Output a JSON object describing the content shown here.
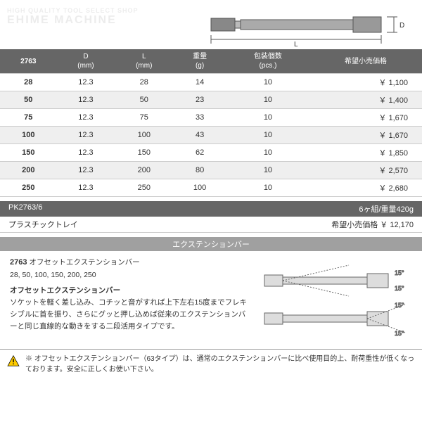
{
  "watermark": {
    "line1": "HIGH QUALITY TOOL SELECT SHOP",
    "line2": "EHIME MACHINE"
  },
  "diagram": {
    "d_label": "D",
    "l_label": "L"
  },
  "spec_table": {
    "headers": [
      "2763",
      "D\n(mm)",
      "L\n(mm)",
      "重量\n(g)",
      "包装個数\n(pcs.)",
      "希望小売価格"
    ],
    "rows": [
      {
        "code": "28",
        "d": "12.3",
        "l": "28",
        "w": "14",
        "pcs": "10",
        "price": "￥ 1,100"
      },
      {
        "code": "50",
        "d": "12.3",
        "l": "50",
        "w": "23",
        "pcs": "10",
        "price": "￥ 1,400"
      },
      {
        "code": "75",
        "d": "12.3",
        "l": "75",
        "w": "33",
        "pcs": "10",
        "price": "￥ 1,670"
      },
      {
        "code": "100",
        "d": "12.3",
        "l": "100",
        "w": "43",
        "pcs": "10",
        "price": "￥ 1,670"
      },
      {
        "code": "150",
        "d": "12.3",
        "l": "150",
        "w": "62",
        "pcs": "10",
        "price": "￥ 1,850"
      },
      {
        "code": "200",
        "d": "12.3",
        "l": "200",
        "w": "80",
        "pcs": "10",
        "price": "￥ 2,570"
      },
      {
        "code": "250",
        "d": "12.3",
        "l": "250",
        "w": "100",
        "pcs": "10",
        "price": "￥ 2,680"
      }
    ]
  },
  "set_bar": {
    "code": "PK2763/6",
    "meta": "6ヶ組/重量420g"
  },
  "set_row": {
    "label": "プラスチックトレイ",
    "price_label": "希望小売価格 ￥ 12,170"
  },
  "section_title": "エクステンションバー",
  "detail": {
    "model": "2763",
    "model_name": "オフセットエクステンションバー",
    "sizes": "28, 50, 100, 150, 200, 250",
    "subhead": "オフセットエクステンションバー",
    "body": "ソケットを軽く差し込み、コチッと音がすれば上下左右15度までフレキシブルに首を振り、さらにグッと押し込めば従来のエクステンションバーと同じ直線的な動きをする二段活用タイプです。",
    "angle_label": "15°"
  },
  "warning": "※ オフセットエクステンションバー（63タイプ）は、通常のエクステンションバーに比べ使用目的上、耐荷重性が低くなっております。安全に正しくお使い下さい。",
  "colors": {
    "header_bg": "#666666",
    "section_bg": "#a0a0a0",
    "border": "#cccccc"
  }
}
